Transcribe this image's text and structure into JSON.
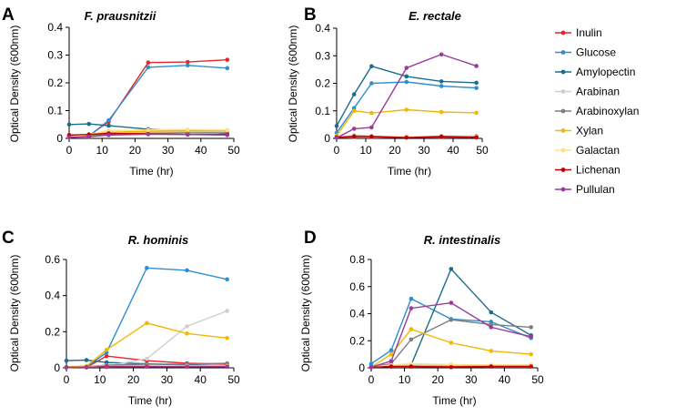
{
  "legend": [
    {
      "name": "Inulin",
      "color": "#e8252a"
    },
    {
      "name": "Glucose",
      "color": "#2e8fd0"
    },
    {
      "name": "Amylopectin",
      "color": "#1b6d8c"
    },
    {
      "name": "Arabinan",
      "color": "#cfcfcf"
    },
    {
      "name": "Arabinoxylan",
      "color": "#7f7f7f"
    },
    {
      "name": "Xylan",
      "color": "#f2b705"
    },
    {
      "name": "Galactan",
      "color": "#fce08a"
    },
    {
      "name": "Lichenan",
      "color": "#c00000"
    },
    {
      "name": "Pullulan",
      "color": "#9c3a9c"
    }
  ],
  "chart_data": [
    {
      "type": "line",
      "panel": "A",
      "title": "F. prausnitzii",
      "xlabel": "Time (hr)",
      "ylabel": "Optical Density (600nm)",
      "xlim": [
        0,
        50
      ],
      "ylim": [
        0,
        0.4
      ],
      "xticks": [
        0,
        10,
        20,
        30,
        40,
        50
      ],
      "yticks": [
        "0",
        "0.1",
        "0.2",
        "0.3",
        "0.4"
      ],
      "x": [
        0,
        6,
        12,
        24,
        36,
        48
      ],
      "series": [
        {
          "name": "Inulin",
          "values": [
            0.01,
            0.01,
            0.06,
            0.273,
            0.275,
            0.283
          ]
        },
        {
          "name": "Glucose",
          "values": [
            0.003,
            0.008,
            0.065,
            0.256,
            0.263,
            0.253
          ]
        },
        {
          "name": "Amylopectin",
          "values": [
            0.05,
            0.052,
            0.046,
            0.033,
            0.026,
            0.018
          ]
        },
        {
          "name": "Arabinan",
          "values": [
            0.005,
            0.012,
            0.02,
            0.022,
            0.024,
            0.024
          ]
        },
        {
          "name": "Arabinoxylan",
          "values": [
            0.004,
            0.01,
            0.016,
            0.018,
            0.02,
            0.02
          ]
        },
        {
          "name": "Xylan",
          "values": [
            0.005,
            0.012,
            0.022,
            0.026,
            0.028,
            0.028
          ]
        },
        {
          "name": "Galactan",
          "values": [
            0.005,
            0.015,
            0.028,
            0.03,
            0.032,
            0.03
          ]
        },
        {
          "name": "Lichenan",
          "values": [
            0.012,
            0.014,
            0.018,
            0.016,
            0.014,
            0.014
          ]
        },
        {
          "name": "Pullulan",
          "values": [
            0.004,
            0.006,
            0.012,
            0.015,
            0.014,
            0.012
          ]
        }
      ]
    },
    {
      "type": "line",
      "panel": "B",
      "title": "E. rectale",
      "xlabel": "Time (hr)",
      "ylabel": "Optical Density (600nm)",
      "xlim": [
        0,
        50
      ],
      "ylim": [
        0,
        0.4
      ],
      "xticks": [
        0,
        10,
        20,
        30,
        40,
        50
      ],
      "yticks": [
        "0",
        "0.1",
        "0.2",
        "0.3",
        "0.4"
      ],
      "x": [
        0,
        6,
        12,
        24,
        36,
        48
      ],
      "series": [
        {
          "name": "Inulin",
          "values": [
            0.005,
            0.006,
            0.006,
            0.004,
            0.005,
            0.004
          ]
        },
        {
          "name": "Glucose",
          "values": [
            0.02,
            0.11,
            0.2,
            0.205,
            0.19,
            0.183
          ]
        },
        {
          "name": "Amylopectin",
          "values": [
            0.045,
            0.16,
            0.262,
            0.225,
            0.207,
            0.202
          ]
        },
        {
          "name": "Arabinan",
          "values": [
            0.005,
            0.005,
            0.006,
            0.006,
            0.006,
            0.006
          ]
        },
        {
          "name": "Arabinoxylan",
          "values": [
            0.004,
            0.01,
            0.008,
            0.006,
            0.008,
            0.008
          ]
        },
        {
          "name": "Xylan",
          "values": [
            0.01,
            0.1,
            0.092,
            0.104,
            0.096,
            0.093
          ]
        },
        {
          "name": "Galactan",
          "values": [
            0.004,
            0.006,
            0.006,
            0.006,
            0.006,
            0.006
          ]
        },
        {
          "name": "Lichenan",
          "values": [
            0.004,
            0.006,
            0.006,
            0.003,
            0.006,
            0.004
          ]
        },
        {
          "name": "Pullulan",
          "values": [
            0.002,
            0.035,
            0.04,
            0.256,
            0.305,
            0.263
          ]
        }
      ]
    },
    {
      "type": "line",
      "panel": "C",
      "title": "R. hominis",
      "xlabel": "Time (hr)",
      "ylabel": "Optical Density (600nm)",
      "xlim": [
        0,
        50
      ],
      "ylim": [
        0,
        0.6
      ],
      "xticks": [
        0,
        10,
        20,
        30,
        40,
        50
      ],
      "yticks": [
        "0",
        "0.2",
        "0.4",
        "0.6"
      ],
      "x": [
        0,
        6,
        12,
        24,
        36,
        48
      ],
      "series": [
        {
          "name": "Inulin",
          "values": [
            0.003,
            0.003,
            0.065,
            0.04,
            0.025,
            0.02
          ]
        },
        {
          "name": "Glucose",
          "values": [
            0.003,
            0.005,
            0.085,
            0.553,
            0.54,
            0.49
          ]
        },
        {
          "name": "Amylopectin",
          "values": [
            0.04,
            0.043,
            0.03,
            0.022,
            0.015,
            0.01
          ]
        },
        {
          "name": "Arabinan",
          "values": [
            0.003,
            0.005,
            0.01,
            0.05,
            0.23,
            0.315
          ]
        },
        {
          "name": "Arabinoxylan",
          "values": [
            0.003,
            0.005,
            0.015,
            0.02,
            0.02,
            0.025
          ]
        },
        {
          "name": "Xylan",
          "values": [
            0.005,
            0.01,
            0.1,
            0.248,
            0.19,
            0.165
          ]
        },
        {
          "name": "Galactan",
          "values": [
            0.003,
            0.005,
            0.01,
            0.01,
            0.01,
            0.01
          ]
        },
        {
          "name": "Lichenan",
          "values": [
            0.003,
            0.003,
            0.008,
            0.008,
            0.006,
            0.006
          ]
        },
        {
          "name": "Pullulan",
          "values": [
            0.002,
            0.004,
            0.005,
            0.006,
            0.006,
            0.006
          ]
        }
      ]
    },
    {
      "type": "line",
      "panel": "D",
      "title": "R. intestinalis",
      "xlabel": "Time (hr)",
      "ylabel": "Optical Density (600nm)",
      "xlim": [
        0,
        50
      ],
      "ylim": [
        0,
        0.8
      ],
      "xticks": [
        0,
        10,
        20,
        30,
        40,
        50
      ],
      "yticks": [
        "0",
        "0.2",
        "0.4",
        "0.6",
        "0.8"
      ],
      "x": [
        0,
        6,
        12,
        24,
        36,
        48
      ],
      "series": [
        {
          "name": "Inulin",
          "values": [
            0.01,
            0.012,
            0.015,
            0.01,
            0.015,
            0.02
          ]
        },
        {
          "name": "Glucose",
          "values": [
            0.03,
            0.13,
            0.51,
            0.36,
            0.34,
            0.22
          ]
        },
        {
          "name": "Amylopectin",
          "values": [
            0.005,
            0.01,
            0.02,
            0.73,
            0.41,
            0.24
          ]
        },
        {
          "name": "Arabinan",
          "values": [
            0.005,
            0.01,
            0.02,
            0.02,
            0.02,
            0.02
          ]
        },
        {
          "name": "Arabinoxylan",
          "values": [
            0.005,
            0.03,
            0.21,
            0.355,
            0.32,
            0.3
          ]
        },
        {
          "name": "Xylan",
          "values": [
            0.005,
            0.1,
            0.285,
            0.185,
            0.125,
            0.1
          ]
        },
        {
          "name": "Galactan",
          "values": [
            0.005,
            0.02,
            0.03,
            0.025,
            0.02,
            0.02
          ]
        },
        {
          "name": "Lichenan",
          "values": [
            0.004,
            0.01,
            0.01,
            0.005,
            0.01,
            0.01
          ]
        },
        {
          "name": "Pullulan",
          "values": [
            0.005,
            0.05,
            0.44,
            0.48,
            0.3,
            0.23
          ]
        }
      ]
    }
  ]
}
